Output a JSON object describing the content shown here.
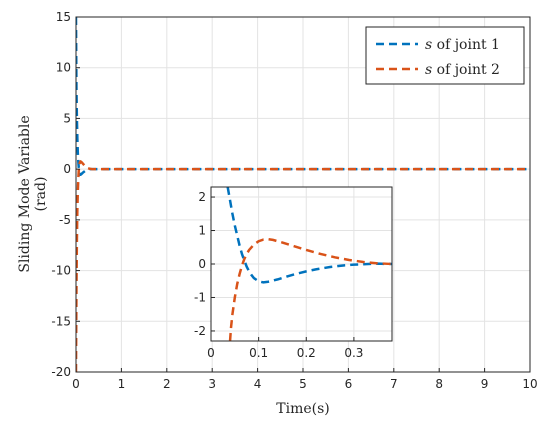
{
  "chart_data": [
    {
      "type": "line",
      "panel": "main",
      "xlabel": "Time(s)",
      "ylabel": "Sliding Mode Variable (rad)",
      "ylabel_lines": [
        "Sliding Mode Variable",
        "(rad)"
      ],
      "xlim": [
        0,
        10
      ],
      "ylim": [
        -20,
        15
      ],
      "xticks": [
        0,
        1,
        2,
        3,
        4,
        5,
        6,
        7,
        8,
        9,
        10
      ],
      "yticks": [
        -20,
        -15,
        -10,
        -5,
        0,
        5,
        10,
        15
      ],
      "grid": true,
      "legend_position": "top-right",
      "series": [
        {
          "name": "s of joint 1",
          "legend_symbol": "s",
          "legend_rest": " of joint 1",
          "color": "#0072BD",
          "dash": "dashed",
          "x": [
            0,
            0.01,
            0.02,
            0.03,
            0.04,
            0.05,
            0.06,
            0.07,
            0.08,
            0.09,
            0.1,
            0.12,
            0.15,
            0.2,
            0.25,
            0.3,
            0.35,
            0.4,
            10
          ],
          "y": [
            15,
            8.0,
            5.0,
            3.0,
            1.6,
            0.8,
            0.2,
            -0.2,
            -0.45,
            -0.55,
            -0.55,
            -0.48,
            -0.35,
            -0.18,
            -0.06,
            0,
            0,
            0,
            0
          ]
        },
        {
          "name": "s of joint 2",
          "legend_symbol": "s",
          "legend_rest": " of joint 2",
          "color": "#D95319",
          "dash": "dashed",
          "x": [
            0,
            0.01,
            0.02,
            0.03,
            0.04,
            0.05,
            0.06,
            0.07,
            0.08,
            0.09,
            0.1,
            0.11,
            0.13,
            0.15,
            0.2,
            0.25,
            0.3,
            0.35,
            0.4,
            10
          ],
          "y": [
            -20,
            -12,
            -7,
            -4.0,
            -2.2,
            -1.0,
            -0.2,
            0.3,
            0.55,
            0.7,
            0.75,
            0.73,
            0.65,
            0.55,
            0.3,
            0.12,
            0.04,
            0,
            0,
            0
          ]
        }
      ]
    },
    {
      "type": "line",
      "panel": "inset",
      "xlim": [
        0,
        0.38
      ],
      "ylim": [
        -2.3,
        2.3
      ],
      "xticks": [
        0,
        0.1,
        0.2,
        0.3
      ],
      "xtick_labels": [
        "0",
        "0.1",
        "0.2",
        "0.3"
      ],
      "yticks": [
        -2,
        -1,
        0,
        1,
        2
      ],
      "grid": true,
      "series": [
        {
          "name": "s of joint 1",
          "color": "#0072BD",
          "dash": "dashed",
          "x": [
            0.035,
            0.04,
            0.045,
            0.05,
            0.055,
            0.06,
            0.065,
            0.07,
            0.075,
            0.08,
            0.085,
            0.09,
            0.1,
            0.11,
            0.12,
            0.14,
            0.16,
            0.18,
            0.2,
            0.22,
            0.25,
            0.28,
            0.3,
            0.33,
            0.35,
            0.38
          ],
          "y": [
            2.3,
            1.9,
            1.5,
            1.15,
            0.85,
            0.55,
            0.3,
            0.1,
            -0.08,
            -0.22,
            -0.33,
            -0.42,
            -0.52,
            -0.55,
            -0.53,
            -0.46,
            -0.37,
            -0.29,
            -0.22,
            -0.16,
            -0.09,
            -0.04,
            -0.02,
            0,
            0.01,
            0
          ]
        },
        {
          "name": "s of joint 2",
          "color": "#D95319",
          "dash": "dashed",
          "x": [
            0.04,
            0.042,
            0.045,
            0.05,
            0.055,
            0.06,
            0.065,
            0.07,
            0.075,
            0.08,
            0.09,
            0.1,
            0.11,
            0.12,
            0.13,
            0.15,
            0.17,
            0.2,
            0.23,
            0.26,
            0.29,
            0.32,
            0.35,
            0.38
          ],
          "y": [
            -2.3,
            -1.9,
            -1.5,
            -1.0,
            -0.6,
            -0.3,
            -0.05,
            0.15,
            0.3,
            0.42,
            0.58,
            0.68,
            0.73,
            0.74,
            0.72,
            0.64,
            0.55,
            0.42,
            0.3,
            0.2,
            0.12,
            0.06,
            0.02,
            0
          ]
        }
      ]
    }
  ]
}
